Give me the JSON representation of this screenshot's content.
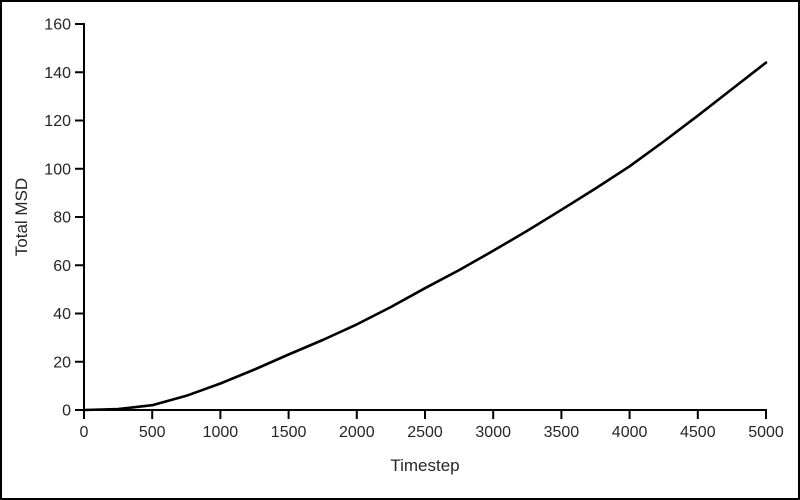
{
  "window": {
    "background": "#ffffff",
    "frame_border_color": "#000000"
  },
  "chart_data": {
    "type": "line",
    "title": "",
    "xlabel": "Timestep",
    "ylabel": "Total MSD",
    "x": [
      0,
      250,
      500,
      750,
      1000,
      1250,
      1500,
      1750,
      2000,
      2250,
      2500,
      2750,
      3000,
      3250,
      3500,
      3750,
      4000,
      4250,
      4500,
      4750,
      5000
    ],
    "series": [
      {
        "name": "Total MSD",
        "color": "#000000",
        "line_width": 2.6,
        "values": [
          0,
          0.4,
          2,
          5.9,
          11,
          16.8,
          23,
          29,
          35.5,
          42.7,
          50.5,
          58,
          66,
          74.3,
          83,
          91.8,
          101,
          111.3,
          122,
          133,
          144
        ]
      }
    ],
    "xlim": [
      0,
      5000
    ],
    "ylim": [
      0,
      160
    ],
    "xticks": [
      0,
      500,
      1000,
      1500,
      2000,
      2500,
      3000,
      3500,
      4000,
      4500,
      5000
    ],
    "yticks": [
      0,
      20,
      40,
      60,
      80,
      100,
      120,
      140,
      160
    ],
    "grid": false,
    "legend": "none",
    "axis_color": "#000000",
    "tick_label_color": "#262626",
    "axis_title_color": "#262626"
  }
}
